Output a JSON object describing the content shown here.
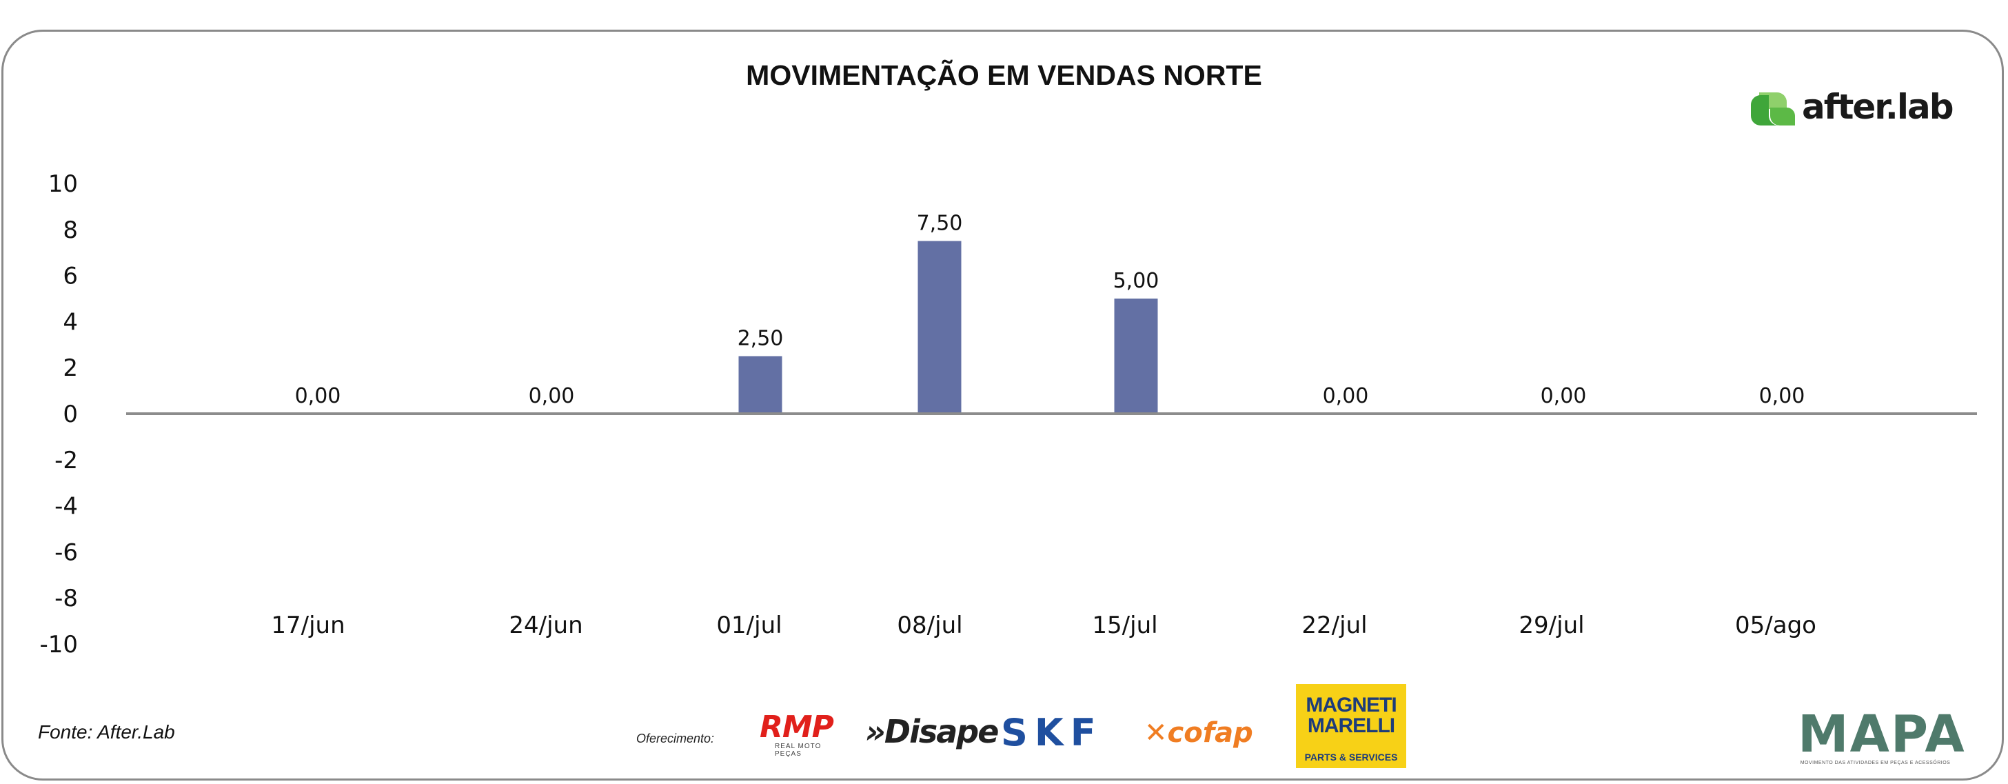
{
  "header": {
    "title": "MOVIMENTAÇÃO EM VENDAS NORTE",
    "brand": "after.lab"
  },
  "chart_data": {
    "type": "bar",
    "title": "MOVIMENTAÇÃO EM VENDAS NORTE",
    "xlabel": "",
    "ylabel": "",
    "ylim": [
      -10,
      10
    ],
    "yticks": [
      10,
      8,
      6,
      4,
      2,
      0,
      -2,
      -4,
      -6,
      -8,
      -10
    ],
    "categories": [
      "17/jun",
      "24/jun",
      "01/jul",
      "08/jul",
      "15/jul",
      "22/jul",
      "29/jul",
      "05/ago"
    ],
    "values": [
      0,
      0,
      2.5,
      7.5,
      5,
      0,
      0,
      0
    ],
    "value_labels": [
      "0,00",
      "0,00",
      "2,50",
      "7,50",
      "5,00",
      "0,00",
      "0,00",
      "0,00"
    ],
    "bar_color": "#6370a4",
    "axis_color": "#8c8c8c",
    "grid": false,
    "legend": "none"
  },
  "footer": {
    "source": "Fonte: After.Lab",
    "offer_label": "Oferecimento:",
    "sponsors": {
      "rmp": "RMP",
      "rmp_sub": "REAL MOTO PEÇAS",
      "disape": "»Disape",
      "skf": "SKF",
      "cofap": "cofap",
      "magneti_line1": "MAGNETI",
      "magneti_line2": "MARELLI",
      "magneti_sub": "PARTS & SERVICES"
    },
    "mapa": "MAPA",
    "mapa_sub": "MOVIMENTO DAS ATIVIDADES EM PEÇAS E ACESSÓRIOS"
  },
  "colors": {
    "brand_green": "#5cb946",
    "title": "#111111"
  }
}
